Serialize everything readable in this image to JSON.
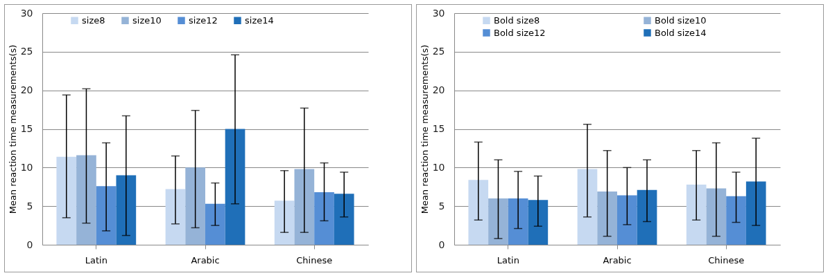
{
  "chart_data": [
    {
      "type": "bar",
      "ylabel": "Mean reaction time measurements(s)",
      "categories": [
        "Latin",
        "Arabic",
        "Chinese"
      ],
      "ylim": [
        0,
        30
      ],
      "yticks": [
        0,
        5,
        10,
        15,
        20,
        25,
        30
      ],
      "grid": "y",
      "legend": "top",
      "series": [
        {
          "name": "size8",
          "color": "#c6d9f1",
          "values": [
            11.4,
            7.2,
            5.7
          ],
          "errors": [
            [
              3.5,
              19.4
            ],
            [
              2.7,
              11.5
            ],
            [
              1.6,
              9.6
            ]
          ]
        },
        {
          "name": "size10",
          "color": "#95b3d7",
          "values": [
            11.6,
            10.0,
            9.8
          ],
          "errors": [
            [
              2.8,
              20.2
            ],
            [
              2.2,
              17.4
            ],
            [
              1.6,
              17.7
            ]
          ]
        },
        {
          "name": "size12",
          "color": "#558ed5",
          "values": [
            7.6,
            5.3,
            6.8
          ],
          "errors": [
            [
              1.8,
              13.2
            ],
            [
              2.5,
              8.0
            ],
            [
              3.1,
              10.6
            ]
          ]
        },
        {
          "name": "size14",
          "color": "#1f6fb8",
          "values": [
            9.0,
            15.0,
            6.6
          ],
          "errors": [
            [
              1.2,
              16.7
            ],
            [
              5.3,
              24.6
            ],
            [
              3.6,
              9.4
            ]
          ]
        }
      ]
    },
    {
      "type": "bar",
      "ylabel": "Mean reaction time measurements(s)",
      "categories": [
        "Latin",
        "Arabic",
        "Chinese"
      ],
      "ylim": [
        0,
        30
      ],
      "yticks": [
        0,
        5,
        10,
        15,
        20,
        25,
        30
      ],
      "grid": "y",
      "legend": "top",
      "series": [
        {
          "name": "Bold size8",
          "color": "#c6d9f1",
          "values": [
            8.4,
            9.8,
            7.8
          ],
          "errors": [
            [
              3.2,
              13.3
            ],
            [
              3.6,
              15.6
            ],
            [
              3.2,
              12.2
            ]
          ]
        },
        {
          "name": "Bold size10",
          "color": "#95b3d7",
          "values": [
            6.0,
            6.9,
            7.3
          ],
          "errors": [
            [
              0.8,
              11.0
            ],
            [
              1.1,
              12.2
            ],
            [
              1.1,
              13.2
            ]
          ]
        },
        {
          "name": "Bold size12",
          "color": "#558ed5",
          "values": [
            6.0,
            6.4,
            6.3
          ],
          "errors": [
            [
              2.1,
              9.5
            ],
            [
              2.6,
              10.0
            ],
            [
              2.9,
              9.4
            ]
          ]
        },
        {
          "name": "Bold size14",
          "color": "#1f6fb8",
          "values": [
            5.8,
            7.1,
            8.2
          ],
          "errors": [
            [
              2.4,
              8.9
            ],
            [
              3.0,
              11.0
            ],
            [
              2.5,
              13.8
            ]
          ]
        }
      ]
    }
  ]
}
